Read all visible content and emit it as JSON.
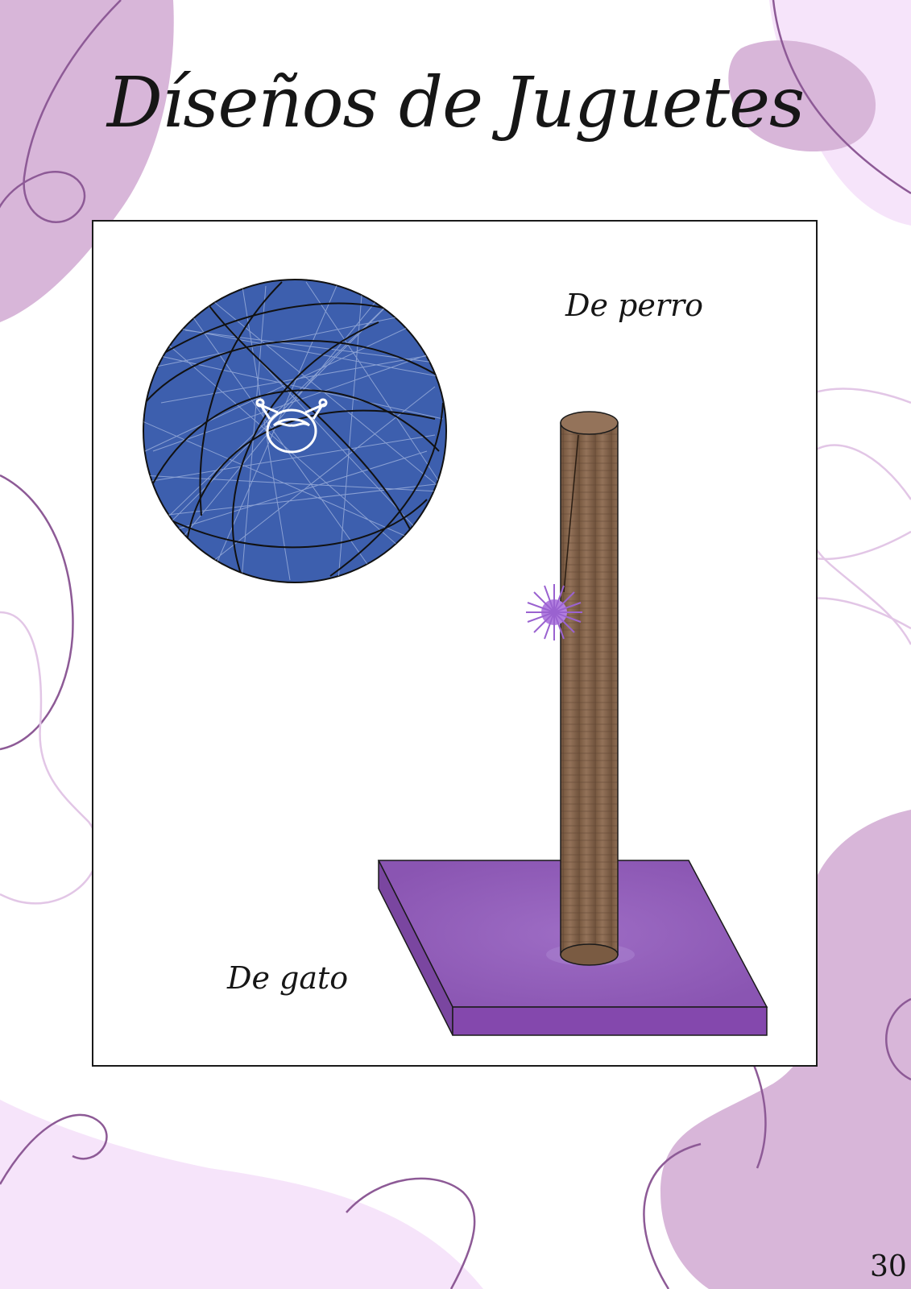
{
  "page": {
    "title": "Díseños de Juguetes",
    "page_number": "30"
  },
  "captions": {
    "dog": "De perro",
    "cat": "De gato"
  },
  "illustrations": {
    "yarn_ball": {
      "name": "yarn-ball-toy",
      "color": "#3d5fae",
      "emblem": "kuromi-face-icon"
    },
    "scratching_post": {
      "name": "cat-scratching-post",
      "post_color": "#8a6a4f",
      "base_color": "#8e56b4",
      "pompom_color": "#9a62d0"
    }
  },
  "theme": {
    "blob_dark": "#d8b6d9",
    "blob_light": "#f7e5fb",
    "line": "#8d5a96"
  }
}
